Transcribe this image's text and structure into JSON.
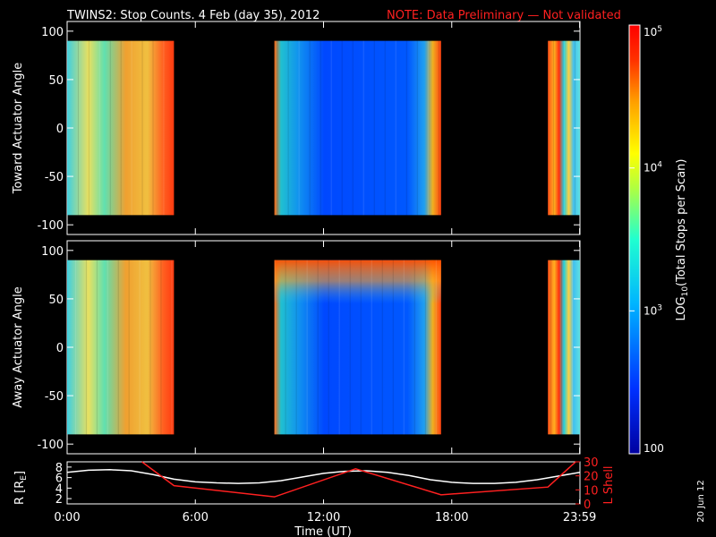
{
  "header": {
    "title": "TWINS2: Stop Counts.  4 Feb (day  35), 2012",
    "note": "NOTE: Data Preliminary — Not validated"
  },
  "footer": {
    "date_stamp": "20 Jun 12"
  },
  "colors": {
    "background": "#000000",
    "axes": "#ffffff",
    "note": "#ff2020",
    "lshell": "#ff2020",
    "radius": "#ffffff"
  },
  "chart_data": [
    {
      "type": "heatmap",
      "ylabel": "Toward Actuator Angle",
      "ylim": [
        -110,
        110
      ],
      "xlim": [
        0,
        24
      ],
      "yticks": [
        "100",
        "50",
        "0",
        "-50",
        "-100"
      ],
      "data_extent_y": [
        -90,
        90
      ],
      "coverage_intervals_ut": [
        [
          0,
          5
        ],
        [
          9.7,
          17.5
        ],
        [
          22.5,
          24
        ]
      ],
      "colormap_range": [
        100,
        100000
      ]
    },
    {
      "type": "heatmap",
      "ylabel": "Away Actuator Angle",
      "ylim": [
        -110,
        110
      ],
      "xlim": [
        0,
        24
      ],
      "yticks": [
        "100",
        "50",
        "0",
        "-50",
        "-100"
      ],
      "data_extent_y": [
        -90,
        90
      ],
      "coverage_intervals_ut": [
        [
          0,
          5
        ],
        [
          9.7,
          17.5
        ],
        [
          22.5,
          24
        ]
      ],
      "colormap_range": [
        100,
        100000
      ]
    },
    {
      "type": "line",
      "ylabel_left": "R [R",
      "ylabel_left_sub": "E",
      "ylabel_left_end": "]",
      "ylabel_right": "L Shell",
      "xlabel": "Time (UT)",
      "xlim": [
        0,
        24
      ],
      "xticks": [
        "0:00",
        "6:00",
        "12:00",
        "18:00",
        "23:59"
      ],
      "yticks_left": [
        "8",
        "6",
        "4",
        "2"
      ],
      "yticks_right": [
        "30",
        "20",
        "10",
        "0"
      ],
      "ylim_left": [
        1,
        9
      ],
      "ylim_right": [
        0,
        30
      ],
      "series": [
        {
          "x": [
            0,
            1,
            2,
            3,
            4,
            5,
            6,
            7,
            8,
            9,
            10,
            11,
            12,
            13,
            14,
            15,
            16,
            17,
            18,
            19,
            20,
            21,
            22,
            23,
            24
          ],
          "y": [
            7.0,
            7.4,
            7.5,
            7.3,
            6.6,
            5.7,
            5.2,
            5.0,
            4.9,
            5.0,
            5.4,
            6.1,
            6.8,
            7.2,
            7.3,
            7.0,
            6.4,
            5.6,
            5.1,
            4.9,
            4.9,
            5.1,
            5.6,
            6.3,
            7.0
          ],
          "axis": "left"
        },
        {
          "x": [
            3.5,
            5,
            9.7,
            13.5,
            17.5,
            22.5,
            23.8
          ],
          "y": [
            30,
            13,
            5,
            25,
            6.5,
            12,
            30
          ],
          "axis": "right"
        }
      ]
    }
  ],
  "colorbar": {
    "label_pre": "LOG",
    "label_sub": "10",
    "label_post": "(Total Stops per Scan)",
    "ticks": [
      {
        "base": "10",
        "exp": "5",
        "value": 100000
      },
      {
        "base": "10",
        "exp": "4",
        "value": 10000
      },
      {
        "base": "10",
        "exp": "3",
        "value": 1000
      },
      {
        "base": "100",
        "exp": "",
        "value": 100
      }
    ],
    "range": [
      100,
      100000
    ]
  }
}
